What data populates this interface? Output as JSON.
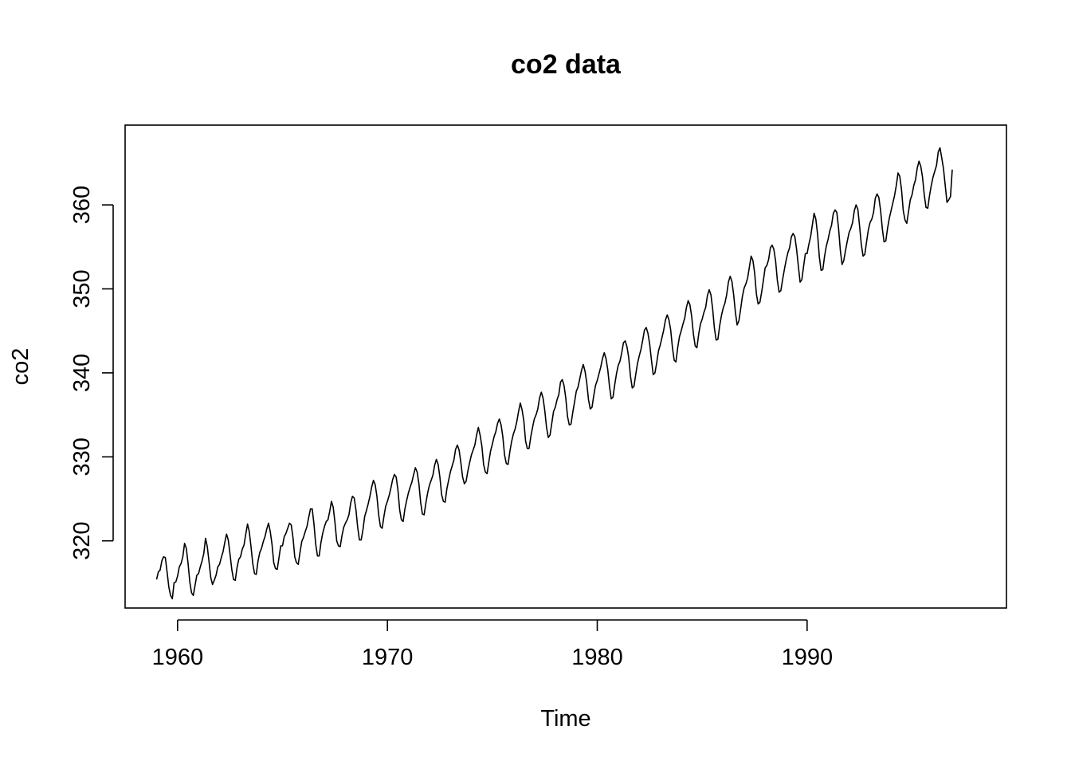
{
  "chart_data": {
    "type": "line",
    "title": "co2 data",
    "xlabel": "Time",
    "ylabel": "co2",
    "xlim": [
      1957.5,
      1999.5
    ],
    "ylim": [
      312.0,
      369.5
    ],
    "x_ticks": [
      1960,
      1970,
      1980,
      1990
    ],
    "x_tick_labels": [
      "1960",
      "1970",
      "1980",
      "1990"
    ],
    "y_ticks": [
      320,
      330,
      340,
      350,
      360
    ],
    "y_tick_labels": [
      "320",
      "330",
      "340",
      "350",
      "360"
    ],
    "grid": false,
    "legend": "none",
    "x_start": 1959.0,
    "x_step": 0.083333,
    "series": [
      {
        "color": "#000000",
        "values": [
          315.4,
          316.3,
          316.5,
          317.6,
          318.1,
          318.0,
          316.3,
          314.5,
          313.5,
          313.1,
          315.0,
          315.1,
          315.8,
          316.9,
          317.3,
          318.1,
          319.7,
          319.1,
          317.3,
          315.1,
          313.8,
          313.5,
          314.7,
          315.9,
          316.1,
          316.9,
          317.6,
          318.5,
          320.3,
          319.3,
          317.5,
          315.6,
          314.8,
          315.3,
          315.9,
          316.9,
          317.2,
          318.0,
          318.7,
          319.8,
          320.8,
          320.1,
          318.4,
          316.6,
          315.4,
          315.3,
          316.8,
          317.8,
          318.1,
          319.0,
          319.5,
          320.8,
          322.0,
          321.1,
          319.3,
          317.3,
          316.1,
          316.0,
          317.6,
          318.6,
          319.1,
          319.9,
          320.5,
          321.4,
          322.1,
          321.1,
          319.6,
          317.4,
          316.7,
          316.6,
          318.0,
          319.4,
          319.4,
          320.5,
          320.9,
          321.5,
          322.1,
          321.9,
          320.4,
          318.1,
          317.4,
          317.2,
          318.6,
          319.9,
          320.4,
          321.1,
          321.7,
          322.8,
          323.8,
          323.8,
          322.0,
          319.6,
          318.2,
          318.2,
          319.8,
          320.9,
          321.7,
          322.3,
          322.5,
          323.5,
          324.7,
          324.0,
          322.2,
          320.0,
          319.4,
          319.3,
          320.6,
          321.6,
          322.1,
          322.5,
          323.1,
          324.5,
          325.3,
          325.1,
          323.7,
          321.6,
          320.1,
          320.1,
          321.3,
          322.9,
          323.6,
          324.4,
          325.3,
          326.4,
          327.2,
          326.7,
          325.3,
          323.1,
          321.7,
          321.5,
          322.9,
          324.1,
          324.7,
          325.4,
          326.3,
          327.3,
          327.9,
          327.6,
          326.1,
          323.7,
          322.5,
          322.3,
          323.8,
          324.8,
          325.7,
          326.4,
          327.0,
          327.9,
          328.7,
          328.2,
          326.8,
          324.6,
          323.2,
          323.1,
          324.5,
          325.7,
          326.6,
          327.2,
          327.8,
          329.0,
          329.7,
          329.1,
          327.6,
          325.5,
          324.7,
          324.6,
          326.2,
          327.2,
          328.2,
          328.9,
          329.6,
          330.9,
          331.4,
          330.8,
          329.3,
          327.6,
          326.8,
          327.1,
          328.3,
          329.3,
          330.2,
          330.8,
          331.4,
          332.6,
          333.5,
          332.6,
          331.3,
          329.1,
          328.2,
          328.0,
          329.4,
          330.7,
          331.5,
          332.4,
          333.0,
          334.0,
          334.5,
          333.8,
          332.4,
          330.2,
          329.2,
          329.1,
          330.6,
          331.8,
          332.7,
          333.3,
          334.2,
          335.4,
          336.4,
          335.6,
          334.3,
          331.9,
          331.0,
          331.0,
          332.4,
          333.5,
          334.5,
          335.0,
          335.7,
          337.0,
          337.7,
          337.0,
          335.5,
          333.5,
          332.3,
          332.6,
          334.0,
          335.4,
          335.9,
          336.8,
          337.4,
          338.9,
          339.2,
          338.5,
          337.0,
          334.8,
          333.8,
          333.9,
          335.3,
          336.5,
          337.8,
          338.3,
          339.3,
          340.3,
          341.0,
          340.2,
          338.8,
          336.8,
          335.7,
          335.9,
          337.3,
          338.5,
          339.1,
          339.9,
          340.7,
          341.7,
          342.4,
          341.7,
          340.4,
          338.4,
          336.9,
          337.1,
          338.6,
          339.9,
          340.9,
          341.4,
          342.4,
          343.6,
          343.8,
          343.1,
          341.8,
          339.6,
          338.2,
          338.4,
          339.8,
          341.1,
          342.0,
          342.8,
          343.9,
          345.1,
          345.4,
          344.7,
          343.4,
          341.5,
          339.8,
          340.0,
          341.2,
          342.6,
          343.3,
          344.2,
          345.1,
          346.3,
          346.9,
          346.3,
          345.1,
          343.0,
          341.5,
          341.3,
          343.0,
          344.3,
          345.0,
          345.8,
          346.5,
          347.8,
          348.6,
          348.1,
          346.7,
          344.6,
          343.2,
          343.0,
          344.6,
          345.8,
          346.4,
          347.2,
          347.8,
          349.2,
          349.9,
          349.3,
          347.6,
          345.3,
          343.9,
          344.0,
          345.6,
          346.8,
          347.7,
          348.3,
          349.3,
          350.8,
          351.5,
          350.9,
          349.3,
          347.2,
          345.7,
          346.2,
          347.6,
          349.1,
          350.1,
          350.6,
          351.3,
          352.6,
          353.9,
          353.4,
          351.9,
          349.4,
          348.2,
          348.4,
          349.6,
          351.0,
          352.5,
          352.8,
          353.5,
          354.9,
          355.2,
          354.7,
          353.3,
          351.0,
          349.6,
          349.8,
          351.1,
          352.3,
          353.4,
          354.3,
          354.9,
          356.2,
          356.6,
          356.2,
          354.7,
          352.7,
          350.8,
          351.1,
          352.7,
          354.2,
          354.2,
          355.3,
          356.2,
          357.6,
          359.0,
          358.3,
          356.5,
          353.8,
          352.2,
          352.3,
          353.9,
          355.1,
          355.9,
          356.9,
          357.6,
          359.0,
          359.4,
          359.1,
          357.2,
          354.6,
          352.9,
          353.4,
          354.6,
          355.7,
          356.7,
          357.2,
          357.9,
          359.3,
          360.0,
          359.5,
          357.5,
          355.3,
          353.9,
          354.1,
          355.6,
          357.0,
          357.9,
          358.3,
          359.1,
          360.8,
          361.3,
          360.9,
          359.4,
          357.2,
          355.6,
          355.7,
          357.2,
          358.4,
          359.3,
          360.2,
          361.1,
          362.3,
          363.8,
          363.4,
          361.8,
          359.3,
          358.2,
          357.8,
          359.2,
          360.6,
          361.2,
          362.3,
          363.0,
          364.4,
          365.2,
          364.6,
          363.3,
          361.2,
          359.7,
          359.6,
          361.1,
          362.3,
          363.3,
          364.0,
          364.7,
          366.3,
          366.8,
          365.6,
          364.3,
          362.3,
          360.3,
          360.6,
          361.0,
          364.2
        ]
      }
    ]
  }
}
